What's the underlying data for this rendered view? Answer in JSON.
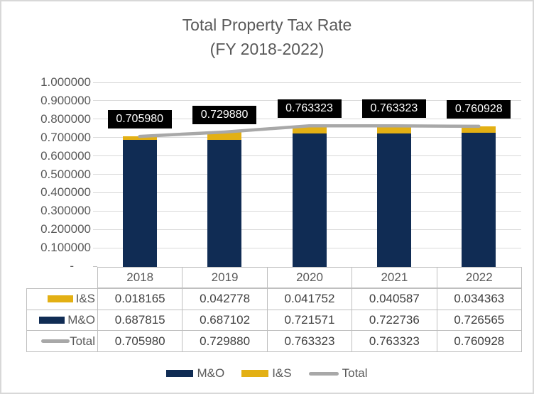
{
  "title": {
    "line1": "Total Property Tax Rate",
    "line2": "(FY 2018-2022)"
  },
  "y_axis": {
    "tick_labels": [
      "1.000000",
      "0.900000",
      "0.800000",
      "0.700000",
      "0.600000",
      "0.500000",
      "0.400000",
      "0.300000",
      "0.200000",
      "0.100000",
      "-"
    ]
  },
  "chart_data": {
    "type": "bar",
    "subtype": "stacked-bars-with-line-overlay",
    "title": "Total Property Tax Rate (FY 2018-2022)",
    "categories": [
      "2018",
      "2019",
      "2020",
      "2021",
      "2022"
    ],
    "series": [
      {
        "name": "M&O",
        "type": "bar",
        "color": "#102c54",
        "values": [
          0.687815,
          0.687102,
          0.721571,
          0.722736,
          0.726565
        ]
      },
      {
        "name": "I&S",
        "type": "bar",
        "color": "#e3b014",
        "values": [
          0.018165,
          0.042778,
          0.041752,
          0.040587,
          0.034363
        ]
      },
      {
        "name": "Total",
        "type": "line",
        "color": "#a8a8a8",
        "values": [
          0.70598,
          0.72988,
          0.763323,
          0.763323,
          0.760928
        ]
      }
    ],
    "data_labels": [
      "0.705980",
      "0.729880",
      "0.763323",
      "0.763323",
      "0.760928"
    ],
    "xlabel": "",
    "ylabel": "",
    "ylim": [
      0,
      1
    ],
    "grid": true,
    "legend_position": "bottom"
  },
  "table": {
    "columns": [
      "2018",
      "2019",
      "2020",
      "2021",
      "2022"
    ],
    "rows": [
      {
        "label": "I&S",
        "swatch": "bar",
        "color": "#e3b014",
        "values": [
          "0.018165",
          "0.042778",
          "0.041752",
          "0.040587",
          "0.034363"
        ]
      },
      {
        "label": "M&O",
        "swatch": "bar",
        "color": "#102c54",
        "values": [
          "0.687815",
          "0.687102",
          "0.721571",
          "0.722736",
          "0.726565"
        ]
      },
      {
        "label": "Total",
        "swatch": "line",
        "color": "#a8a8a8",
        "values": [
          "0.705980",
          "0.729880",
          "0.763323",
          "0.763323",
          "0.760928"
        ]
      }
    ]
  },
  "legend": {
    "items": [
      {
        "label": "M&O",
        "swatch": "bar",
        "color": "#102c54"
      },
      {
        "label": "I&S",
        "swatch": "bar",
        "color": "#e3b014"
      },
      {
        "label": "Total",
        "swatch": "line",
        "color": "#a8a8a8"
      }
    ]
  },
  "colors": {
    "gridline": "#d9d9d9",
    "table_border": "#bfbfbf",
    "label_box_bg": "#000000",
    "label_box_text": "#ffffff",
    "axis_text": "#595959",
    "title_text": "#595959"
  }
}
